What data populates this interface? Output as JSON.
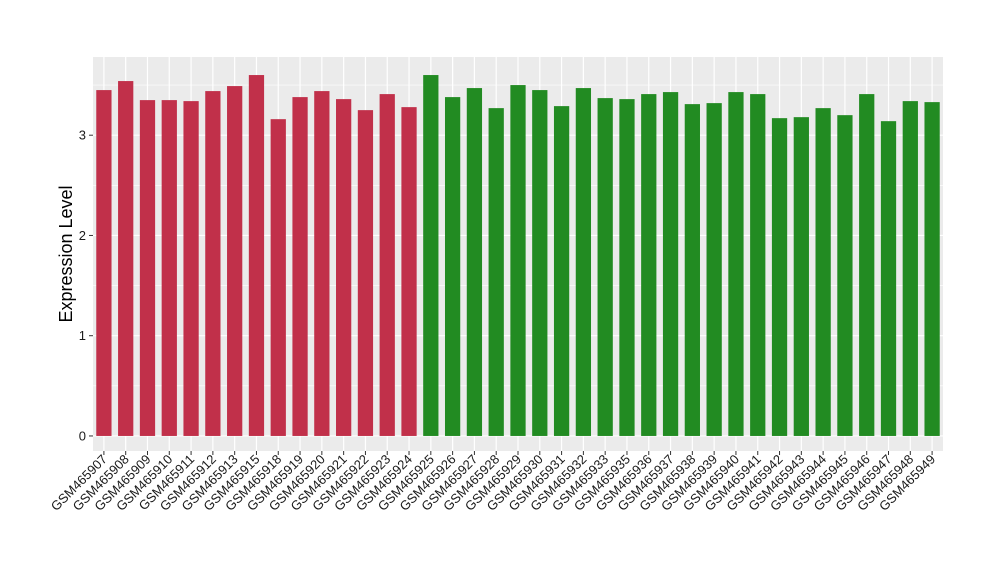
{
  "chart_data": {
    "type": "bar",
    "title": "",
    "xlabel": "",
    "ylabel": "Expression Level",
    "ylim": [
      -0.15,
      3.78
    ],
    "yticks": [
      0,
      1,
      2,
      3
    ],
    "grid": true,
    "background_color": "#ebebeb",
    "categories": [
      "GSM465907",
      "GSM465908",
      "GSM465909",
      "GSM465910",
      "GSM465911",
      "GSM465912",
      "GSM465913",
      "GSM465915",
      "GSM465918",
      "GSM465919",
      "GSM465920",
      "GSM465921",
      "GSM465922",
      "GSM465923",
      "GSM465924",
      "GSM465925",
      "GSM465926",
      "GSM465927",
      "GSM465928",
      "GSM465929",
      "GSM465930",
      "GSM465931",
      "GSM465932",
      "GSM465933",
      "GSM465935",
      "GSM465936",
      "GSM465937",
      "GSM465938",
      "GSM465939",
      "GSM465940",
      "GSM465941",
      "GSM465942",
      "GSM465943",
      "GSM465944",
      "GSM465945",
      "GSM465946",
      "GSM465947",
      "GSM465948",
      "GSM465949"
    ],
    "values": [
      3.45,
      3.54,
      3.35,
      3.35,
      3.34,
      3.44,
      3.49,
      3.6,
      3.16,
      3.38,
      3.44,
      3.36,
      3.25,
      3.41,
      3.28,
      3.6,
      3.38,
      3.47,
      3.27,
      3.5,
      3.45,
      3.29,
      3.47,
      3.37,
      3.36,
      3.41,
      3.43,
      3.31,
      3.32,
      3.43,
      3.41,
      3.17,
      3.18,
      3.27,
      3.2,
      3.41,
      3.14,
      3.34,
      3.33
    ],
    "bar_colors": [
      "#c1304a",
      "#c1304a",
      "#c1304a",
      "#c1304a",
      "#c1304a",
      "#c1304a",
      "#c1304a",
      "#c1304a",
      "#c1304a",
      "#c1304a",
      "#c1304a",
      "#c1304a",
      "#c1304a",
      "#c1304a",
      "#c1304a",
      "#228b22",
      "#228b22",
      "#228b22",
      "#228b22",
      "#228b22",
      "#228b22",
      "#228b22",
      "#228b22",
      "#228b22",
      "#228b22",
      "#228b22",
      "#228b22",
      "#228b22",
      "#228b22",
      "#228b22",
      "#228b22",
      "#228b22",
      "#228b22",
      "#228b22",
      "#228b22",
      "#228b22",
      "#228b22",
      "#228b22",
      "#228b22"
    ]
  }
}
